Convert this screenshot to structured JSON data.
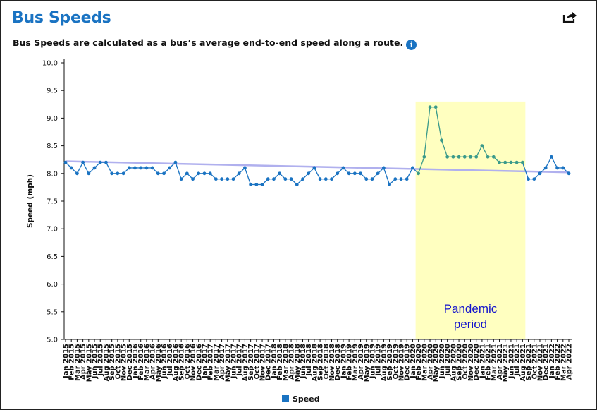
{
  "header": {
    "title": "Bus Speeds",
    "subtitle": "Bus Speeds are calculated as a bus’s average end-to-end speed along a route.",
    "share_icon": "share-icon",
    "info_icon": "info-icon",
    "info_glyph": "i"
  },
  "legend": {
    "label": "Speed",
    "color": "#1a73c2"
  },
  "annotation": {
    "line1": "Pandemic",
    "line2": "period",
    "start": "Feb 2020",
    "end": "Aug 2021",
    "fill": "#ffffc0",
    "text_color": "#1414cc"
  },
  "colors": {
    "line": "#1a73c2",
    "pandemic_line": "#3a9a8a",
    "trend": "#b0b0ee",
    "axis": "#111111"
  },
  "chart_data": {
    "type": "line",
    "title": "Bus Speeds",
    "ylabel": "Speed (mph)",
    "xlabel": "",
    "ylim": [
      5.0,
      10.0
    ],
    "yticks": [
      "5.0",
      "5.5",
      "6.0",
      "6.5",
      "7.0",
      "7.5",
      "8.0",
      "8.5",
      "9.0",
      "9.5",
      "10.0"
    ],
    "grid": false,
    "legend_position": "bottom-center",
    "x": [
      "Jan 2015",
      "Feb 2015",
      "Mar 2015",
      "Apr 2015",
      "May 2015",
      "Jun 2015",
      "Jul 2015",
      "Aug 2015",
      "Sep 2015",
      "Oct 2015",
      "Nov 2015",
      "Dec 2015",
      "Jan 2016",
      "Feb 2016",
      "Mar 2016",
      "Apr 2016",
      "May 2016",
      "Jun 2016",
      "Jul 2016",
      "Aug 2016",
      "Sep 2016",
      "Oct 2016",
      "Nov 2016",
      "Dec 2016",
      "Jan 2017",
      "Feb 2017",
      "Mar 2017",
      "Apr 2017",
      "May 2017",
      "Jun 2017",
      "Jul 2017",
      "Aug 2017",
      "Sep 2017",
      "Oct 2017",
      "Nov 2017",
      "Dec 2017",
      "Jan 2018",
      "Feb 2018",
      "Mar 2018",
      "Apr 2018",
      "May 2018",
      "Jun 2018",
      "Jul 2018",
      "Aug 2018",
      "Sep 2018",
      "Oct 2018",
      "Nov 2018",
      "Dec 2018",
      "Jan 2019",
      "Feb 2019",
      "Mar 2019",
      "Apr 2019",
      "May 2019",
      "Jun 2019",
      "Jul 2019",
      "Aug 2019",
      "Sep 2019",
      "Oct 2019",
      "Nov 2019",
      "Dec 2019",
      "Jan 2020",
      "Feb 2020",
      "Mar 2020",
      "Apr 2020",
      "May 2020",
      "Jun 2020",
      "Jul 2020",
      "Aug 2020",
      "Sep 2020",
      "Oct 2020",
      "Nov 2020",
      "Dec 2020",
      "Jan 2021",
      "Feb 2021",
      "Mar 2021",
      "Apr 2021",
      "May 2021",
      "Jun 2021",
      "Jul 2021",
      "Aug 2021",
      "Sep 2021",
      "Oct 2021",
      "Nov 2021",
      "Dec 2021",
      "Jan 2022",
      "Feb 2022",
      "Mar 2022",
      "Apr 2022"
    ],
    "series": [
      {
        "name": "Speed",
        "values": [
          8.2,
          8.1,
          8.0,
          8.2,
          8.0,
          8.1,
          8.2,
          8.2,
          8.0,
          8.0,
          8.0,
          8.1,
          8.1,
          8.1,
          8.1,
          8.1,
          8.0,
          8.0,
          8.1,
          8.2,
          7.9,
          8.0,
          7.9,
          8.0,
          8.0,
          8.0,
          7.9,
          7.9,
          7.9,
          7.9,
          8.0,
          8.1,
          7.8,
          7.8,
          7.8,
          7.9,
          7.9,
          8.0,
          7.9,
          7.9,
          7.8,
          7.9,
          8.0,
          8.1,
          7.9,
          7.9,
          7.9,
          8.0,
          8.1,
          8.0,
          8.0,
          8.0,
          7.9,
          7.9,
          8.0,
          8.1,
          7.8,
          7.9,
          7.9,
          7.9,
          8.1,
          8.0,
          8.3,
          9.2,
          9.2,
          8.6,
          8.3,
          8.3,
          8.3,
          8.3,
          8.3,
          8.3,
          8.5,
          8.3,
          8.3,
          8.2,
          8.2,
          8.2,
          8.2,
          8.2,
          7.9,
          7.9,
          8.0,
          8.1,
          8.3,
          8.1,
          8.1,
          8.0
        ]
      }
    ],
    "trendline": {
      "start": 8.22,
      "end": 8.02
    }
  }
}
